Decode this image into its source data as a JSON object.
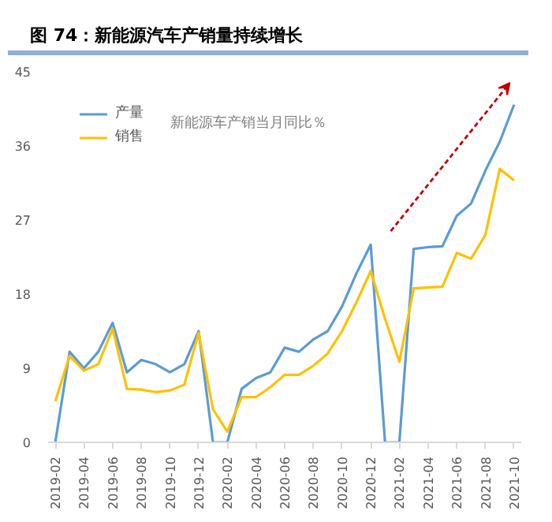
{
  "chart_data": {
    "type": "line",
    "title": "图 74：新能源汽车产销量持续增长",
    "annotations": [
      "新能源车产销当月同比％"
    ],
    "categories": [
      "2019-02",
      null,
      "2019-04",
      null,
      "2019-06",
      null,
      "2019-08",
      null,
      "2019-10",
      null,
      "2019-12",
      null,
      "2020-02",
      null,
      "2020-04",
      null,
      "2020-06",
      null,
      "2020-08",
      null,
      "2020-10",
      null,
      "2020-12",
      null,
      "2021-02",
      null,
      "2021-04",
      null,
      "2021-06",
      null,
      "2021-08",
      null,
      "2021-10"
    ],
    "series": [
      {
        "name": "产量",
        "color": "#5b9bd5",
        "values": [
          0,
          11,
          9,
          11,
          14.5,
          8.5,
          10,
          9.5,
          8.5,
          9.5,
          13.5,
          0,
          0,
          6.5,
          7.8,
          8.5,
          11.5,
          11,
          12.5,
          13.5,
          16.5,
          20.5,
          24,
          0,
          0,
          23.5,
          23.7,
          23.8,
          27.5,
          29,
          33,
          36.5,
          41
        ]
      },
      {
        "name": "销售",
        "color": "#ffc000",
        "values": [
          5,
          10.5,
          8.7,
          9.5,
          13.8,
          6.5,
          6.4,
          6.1,
          6.3,
          7,
          13.3,
          4,
          1.3,
          5.5,
          5.5,
          6.7,
          8.2,
          8.2,
          9.3,
          10.8,
          13.5,
          17,
          20.8,
          15,
          9.8,
          18.7,
          18.8,
          18.9,
          23,
          22.3,
          25.2,
          33.2,
          31.8
        ]
      }
    ],
    "ylim": [
      0,
      45
    ],
    "yticks": [
      0,
      9,
      18,
      27,
      36,
      45
    ],
    "grid": false,
    "legend": "top left"
  }
}
